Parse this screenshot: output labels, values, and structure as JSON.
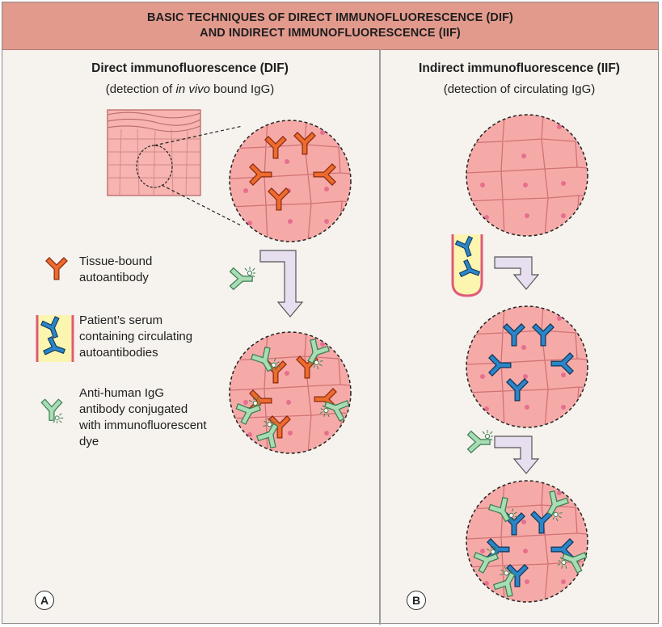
{
  "header": {
    "line1": "BASIC TECHNIQUES OF DIRECT IMMUNOFLUORESCENCE (DIF)",
    "line2": "AND INDIRECT IMMUNOFLUORESCENCE (IIF)"
  },
  "panel_a": {
    "title": "Direct immunofluorescence (DIF)",
    "subtitle_pre": "(detection of ",
    "subtitle_em": "in vivo",
    "subtitle_post": " bound IgG)",
    "letter": "A"
  },
  "panel_b": {
    "title": "Indirect immunofluorescence (IIF)",
    "subtitle": "(detection of circulating IgG)",
    "letter": "B"
  },
  "legend": {
    "tissue_bound": [
      "Tissue-bound",
      "autoantibody"
    ],
    "serum": [
      "Patient’s serum",
      "containing circulating",
      "autoantibodies"
    ],
    "anti_human": [
      "Anti-human IgG",
      "antibody conjugated",
      "with immunofluorescent",
      "dye"
    ]
  },
  "colors": {
    "header_bg": "#e29a8d",
    "tissue": "#f4a8a8",
    "tissue_dot": "#e56f8f",
    "tissue_bound_antibody": "#e85a2a",
    "circulating_antibody": "#1f78b4",
    "conjugated_antibody": "#8fcf9f",
    "serum": "#fbf5b0",
    "arrow": "#e5dcee"
  }
}
